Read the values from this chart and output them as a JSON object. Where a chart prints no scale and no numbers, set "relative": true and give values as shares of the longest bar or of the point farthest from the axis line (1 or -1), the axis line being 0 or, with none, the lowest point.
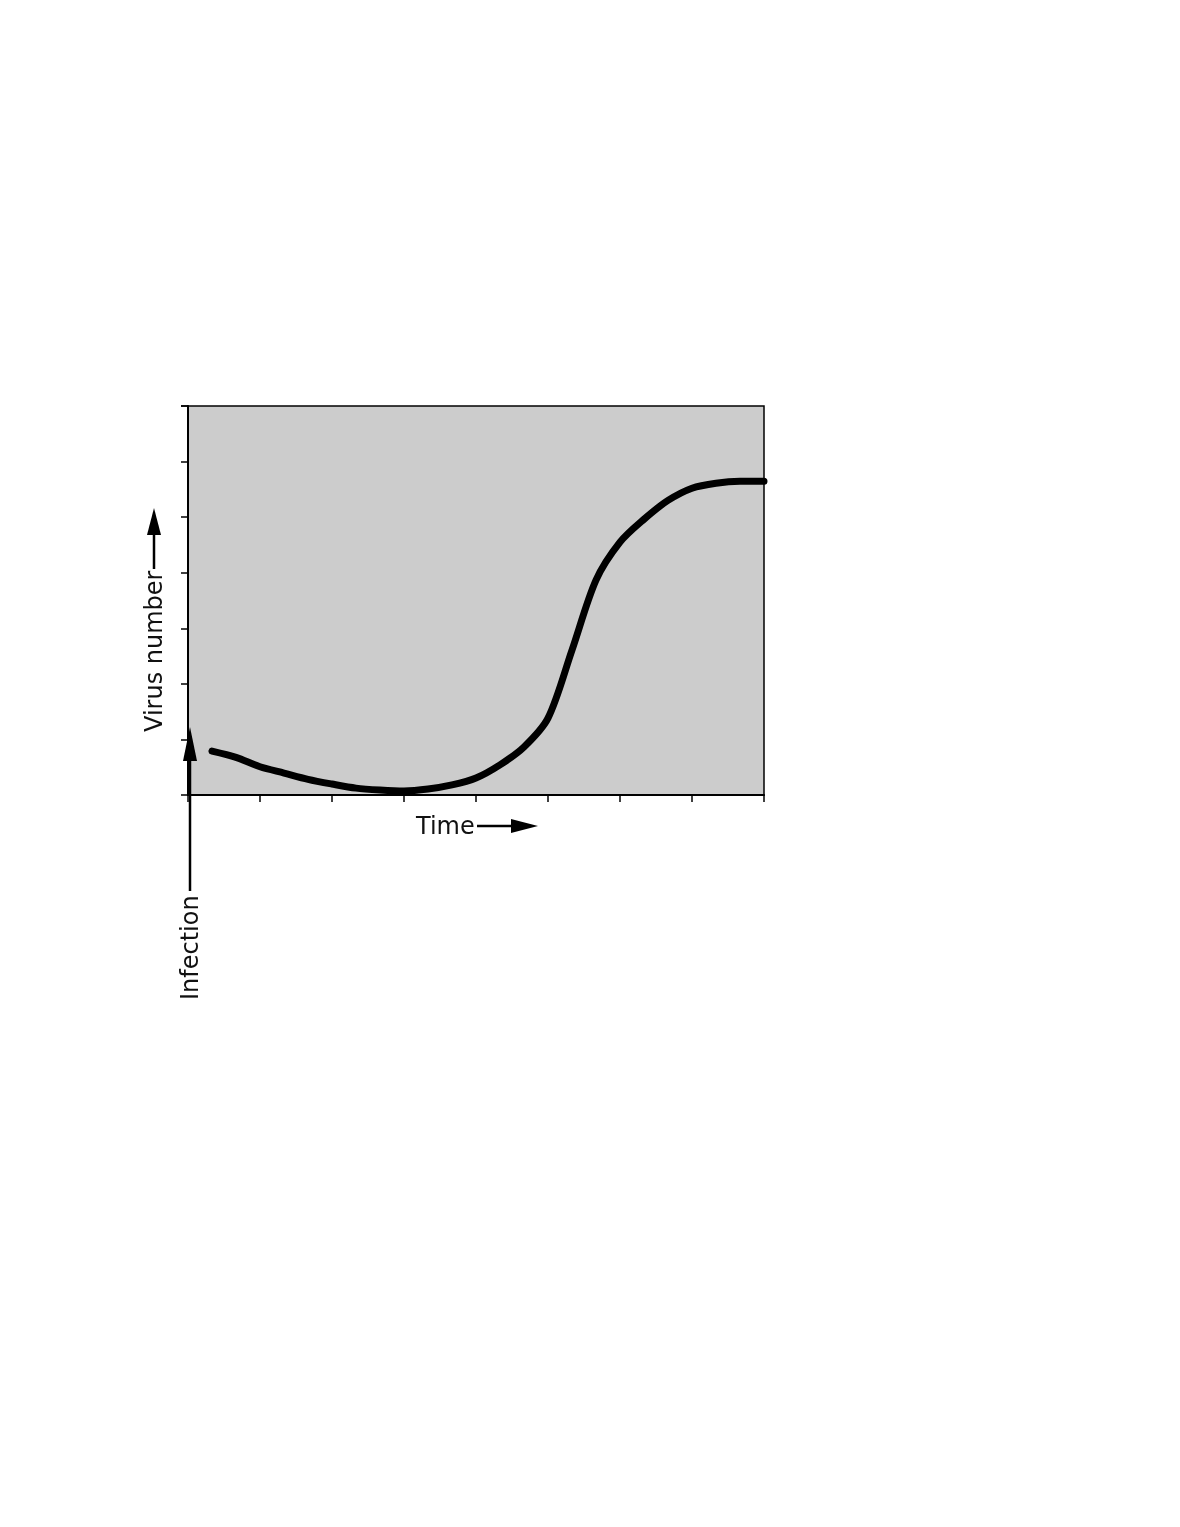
{
  "chart_data": {
    "type": "line",
    "relative": true,
    "xlabel": "Time",
    "ylabel": "Virus number",
    "annotations": [
      "Infection"
    ],
    "categories": [
      null,
      null,
      null,
      null,
      null,
      null,
      null,
      null,
      null,
      null,
      null,
      null,
      null,
      null,
      null,
      null,
      null,
      null,
      null,
      null,
      null,
      null,
      null,
      null,
      null
    ],
    "series": [
      {
        "color": "#000000",
        "values": [
          null,
          0.14,
          0.12,
          0.09,
          0.07,
          0.05,
          0.035,
          0.022,
          0.016,
          0.013,
          0.019,
          0.032,
          0.054,
          0.096,
          0.153,
          0.245,
          0.462,
          0.685,
          0.806,
          0.879,
          0.939,
          0.978,
          0.994,
          1,
          1
        ]
      }
    ],
    "marker": "none",
    "line_style": "solid",
    "grid": false
  }
}
